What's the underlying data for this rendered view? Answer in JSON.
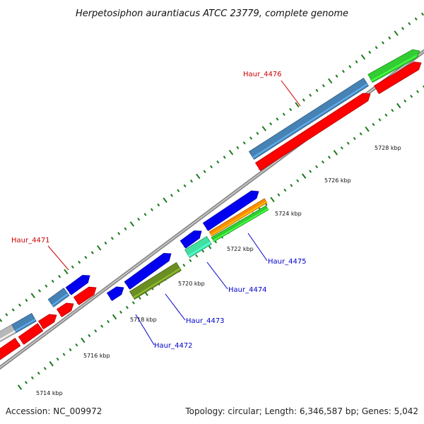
{
  "title": "Herpetosiphon aurantiacus ATCC 23779, complete genome",
  "footer": {
    "accession": "Accession: NC_009972",
    "summary": "Topology: circular; Length: 6,346,587 bp; Genes: 5,042"
  },
  "ticks": [
    "5714 kbp",
    "5716 kbp",
    "5718 kbp",
    "5720 kbp",
    "5722 kbp",
    "5724 kbp",
    "5726 kbp",
    "5728 kbp"
  ],
  "genes": [
    {
      "id": "Haur_4471",
      "color": "#cc0000"
    },
    {
      "id": "Haur_4472",
      "color": "#0000cc"
    },
    {
      "id": "Haur_4473",
      "color": "#0000cc"
    },
    {
      "id": "Haur_4474",
      "color": "#0000cc"
    },
    {
      "id": "Haur_4475",
      "color": "#0000cc"
    },
    {
      "id": "Haur_4476",
      "color": "#cc0000"
    }
  ],
  "colors": {
    "red": "#ff0000",
    "blue": "#0000ee",
    "steelblue": "#4682b4",
    "gray": "#b8b8b8",
    "olive": "#6b8e23",
    "aquamarine": "#40e0a0",
    "orange": "#ff8c00",
    "green": "#32cd32",
    "backbone": "#888888",
    "tick": "#1a7a1a"
  }
}
